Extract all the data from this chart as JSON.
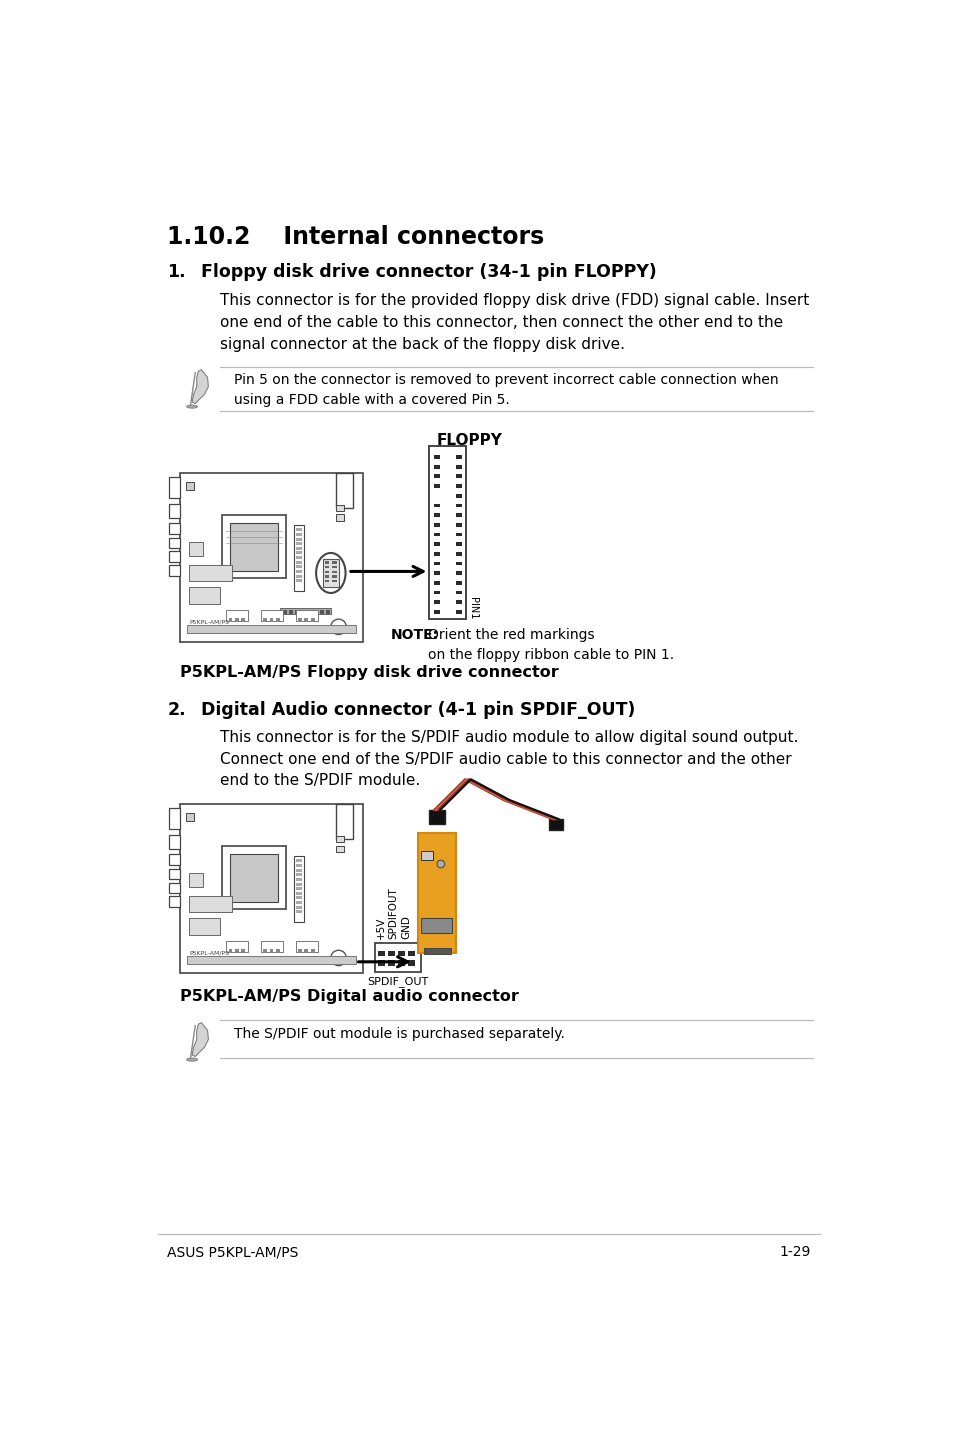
{
  "title": "1.10.2    Internal connectors",
  "section1_num": "1.",
  "section1_heading": "Floppy disk drive connector (34-1 pin FLOPPY)",
  "section1_body": "This connector is for the provided floppy disk drive (FDD) signal cable. Insert\none end of the cable to this connector, then connect the other end to the\nsignal connector at the back of the floppy disk drive.",
  "note1_text": "Pin 5 on the connector is removed to prevent incorrect cable connection when\nusing a FDD cable with a covered Pin 5.",
  "floppy_label": "FLOPPY",
  "floppy_note_bold": "NOTE:",
  "floppy_note_normal": "Orient the red markings\non the floppy ribbon cable to PIN 1.",
  "pin1_label": "PIN1",
  "floppy_caption": "P5KPL-AM/PS Floppy disk drive connector",
  "section2_num": "2.",
  "section2_heading": "Digital Audio connector (4-1 pin SPDIF_OUT)",
  "section2_body": "This connector is for the S/PDIF audio module to allow digital sound output.\nConnect one end of the S/PDIF audio cable to this connector and the other\nend to the S/PDIF module.",
  "spdif_caption": "P5KPL-AM/PS Digital audio connector",
  "spdif_label": "SPDIF_OUT",
  "spdif_v_labels": [
    "+5V",
    "SPDIFOUT",
    "GND"
  ],
  "note2_text": "The S/PDIF out module is purchased separately.",
  "footer_left": "ASUS P5KPL-AM/PS",
  "footer_right": "1-29",
  "bg_color": "#ffffff",
  "text_color": "#000000",
  "gray_line_color": "#bbbbbb",
  "dark_color": "#222222",
  "board_edge": "#444444",
  "orange_board": "#d4870a",
  "orange_fill": "#e8a020"
}
